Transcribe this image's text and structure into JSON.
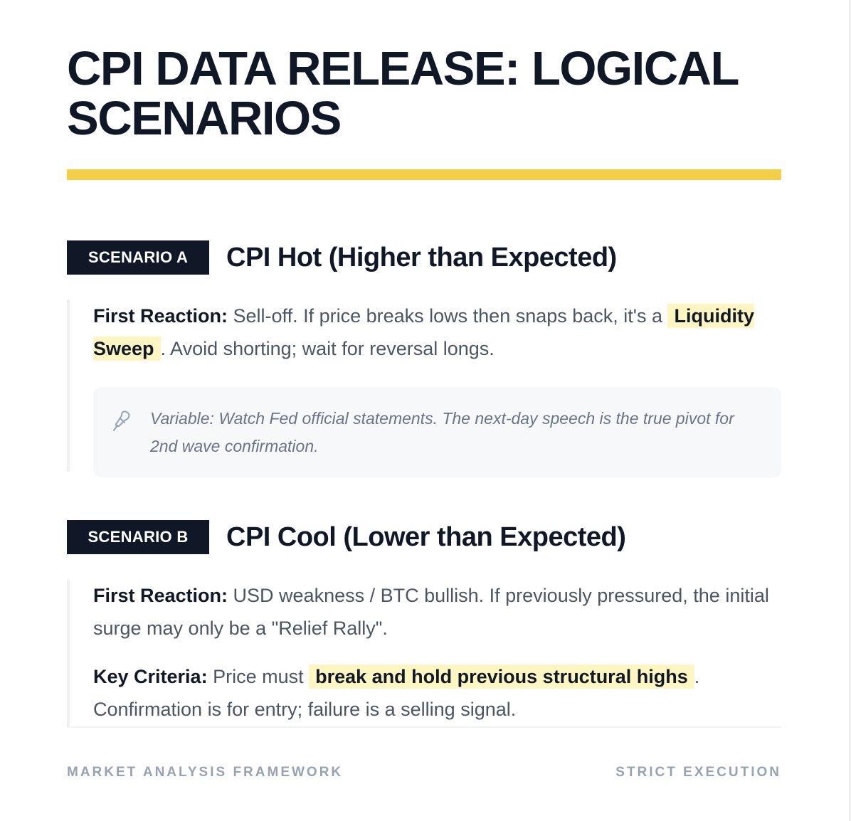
{
  "header": {
    "title": "CPI DATA RELEASE: LOGICAL SCENARIOS"
  },
  "scenarios": [
    {
      "tag": "SCENARIO A",
      "title": "CPI Hot (Higher than Expected)",
      "first_reaction": {
        "label": "First Reaction:",
        "text_before": " Sell-off. If price breaks lows then snaps back, it's a ",
        "highlight": "Liquidity Sweep",
        "text_after": ". Avoid shorting; wait for reversal longs."
      },
      "note": {
        "icon": "pin-icon",
        "text": "Variable: Watch Fed official statements. The next-day speech is the true pivot for 2nd wave confirmation."
      }
    },
    {
      "tag": "SCENARIO B",
      "title": "CPI Cool (Lower than Expected)",
      "first_reaction": {
        "label": "First Reaction:",
        "text": " USD weakness / BTC bullish. If previously pressured, the initial surge may only be a \"Relief Rally\"."
      },
      "key_criteria": {
        "label": "Key Criteria:",
        "text_before": " Price must ",
        "highlight": "break and hold previous structural highs",
        "text_after": ". Confirmation is for entry; failure is a selling signal."
      }
    }
  ],
  "footer": {
    "left": "MARKET ANALYSIS FRAMEWORK",
    "right": "STRICT EXECUTION"
  },
  "colors": {
    "accent": "#f2cf46",
    "dark": "#101828",
    "highlight": "#fdf6c3",
    "muted": "#98a2b3"
  }
}
